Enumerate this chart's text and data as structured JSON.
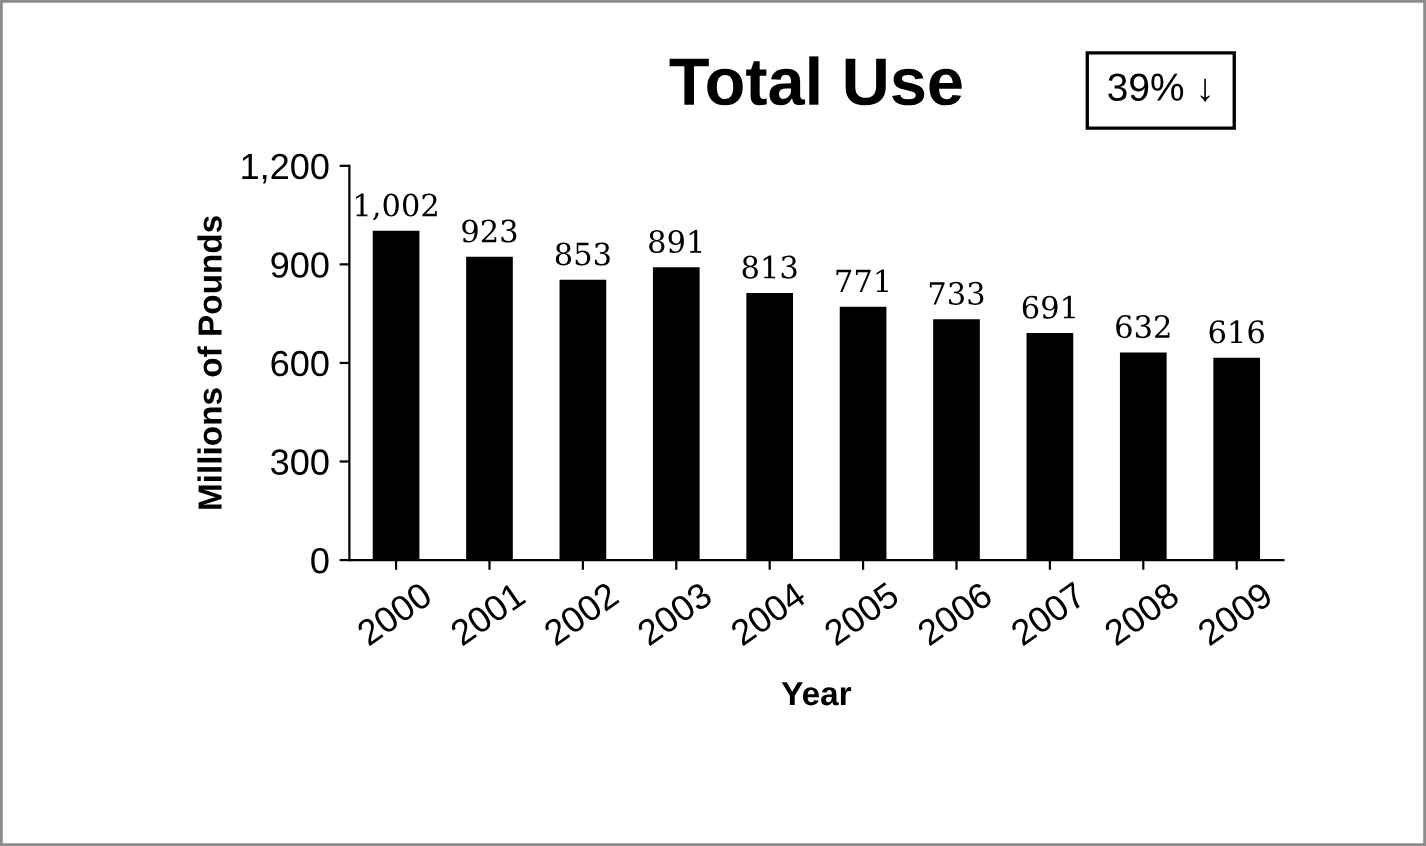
{
  "chart_data": {
    "type": "bar",
    "title": "Total Use",
    "xlabel": "Year",
    "ylabel": "Millions of Pounds",
    "categories": [
      "2000",
      "2001",
      "2002",
      "2003",
      "2004",
      "2005",
      "2006",
      "2007",
      "2008",
      "2009"
    ],
    "values": [
      1002,
      923,
      853,
      891,
      813,
      771,
      733,
      691,
      632,
      616
    ],
    "value_labels": [
      "1,002",
      "923",
      "853",
      "891",
      "813",
      "771",
      "733",
      "691",
      "632",
      "616"
    ],
    "color": "#000000",
    "ylim": [
      0,
      1200
    ],
    "yticks": [
      0,
      300,
      600,
      900,
      {
        "value": 1200,
        "label": "1,200"
      }
    ],
    "annotations": [
      "39% ↓"
    ],
    "grid": false,
    "legend": false
  }
}
